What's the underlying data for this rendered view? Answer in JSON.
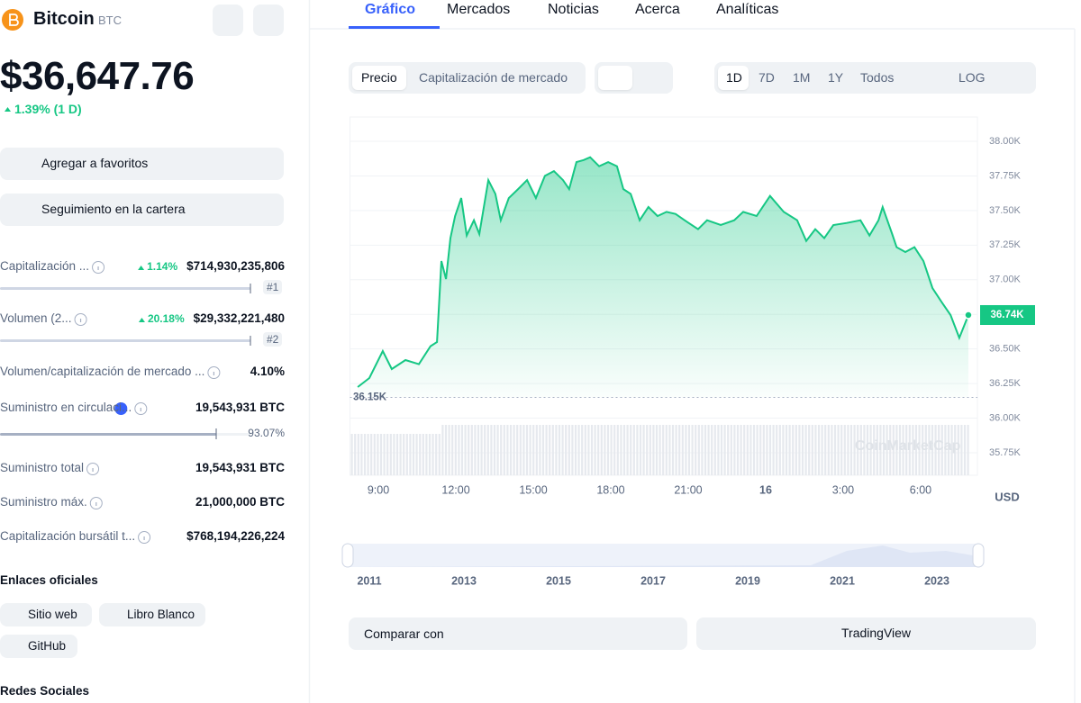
{
  "header": {
    "name": "Bitcoin",
    "symbol": "BTC",
    "price": "$36,647.76",
    "change": "1.39% (1 D)"
  },
  "buttons": {
    "favorites": "Agregar a favoritos",
    "portfolio": "Seguimiento en la cartera"
  },
  "stats": [
    {
      "label": "Capitalización ...",
      "change": "1.14%",
      "value": "$714,930,235,806",
      "rank": "#1"
    },
    {
      "label": "Volumen (2...",
      "change": "20.18%",
      "value": "$29,332,221,480",
      "rank": "#2"
    },
    {
      "label": "Volumen/capitalización de mercado ...",
      "value": "4.10%"
    },
    {
      "label": "Suministro en circulaci...",
      "value": "19,543,931 BTC",
      "percent": "93.07%"
    },
    {
      "label": "Suministro total",
      "value": "19,543,931 BTC"
    },
    {
      "label": "Suministro máx.",
      "value": "21,000,000 BTC"
    },
    {
      "label": "Capitalización bursátil t...",
      "value": "$768,194,226,224"
    }
  ],
  "links": {
    "title": "Enlaces oficiales",
    "items": [
      "Sitio web",
      "Libro Blanco",
      "GitHub"
    ]
  },
  "social_title": "Redes Sociales",
  "tabs": [
    "Gráfico",
    "Mercados",
    "Noticias",
    "Acerca",
    "Analíticas"
  ],
  "toolbar": {
    "types": [
      "Precio",
      "Capitalización de mercado"
    ],
    "ranges": [
      "1D",
      "7D",
      "1M",
      "1Y",
      "Todos"
    ],
    "log": "LOG"
  },
  "chart_data": {
    "type": "area",
    "color": "#16c784",
    "x": [
      8.2,
      8.65,
      9.17,
      9.52,
      10.05,
      10.57,
      11.02,
      11.27,
      11.44,
      11.62,
      11.79,
      11.97,
      12.21,
      12.42,
      12.7,
      12.91,
      13.26,
      13.53,
      13.74,
      14.05,
      14.41,
      14.76,
      15.1,
      15.45,
      15.8,
      16.15,
      16.39,
      16.67,
      16.95,
      17.2,
      17.55,
      17.9,
      18.24,
      18.49,
      18.77,
      19.12,
      19.46,
      19.81,
      20.16,
      20.51,
      20.86,
      21.38,
      21.73,
      22.26,
      22.78,
      23.13,
      23.65,
      24.17,
      24.7,
      25.22,
      25.57,
      25.92,
      26.27,
      26.62,
      27.14,
      27.67,
      28.02,
      28.37,
      28.53,
      28.9,
      29.07,
      29.41,
      29.76,
      30.11,
      30.46,
      30.81,
      31.16,
      31.5,
      31.85
    ],
    "values": [
      36225,
      36290,
      36485,
      36355,
      36420,
      36390,
      36520,
      36550,
      37135,
      37005,
      37300,
      37460,
      37590,
      37320,
      37430,
      37330,
      37720,
      37620,
      37430,
      37590,
      37655,
      37720,
      37590,
      37750,
      37785,
      37720,
      37655,
      37850,
      37865,
      37885,
      37820,
      37850,
      37820,
      37655,
      37620,
      37430,
      37525,
      37460,
      37490,
      37475,
      37430,
      37365,
      37430,
      37395,
      37430,
      37490,
      37460,
      37605,
      37490,
      37430,
      37280,
      37365,
      37300,
      37395,
      37410,
      37430,
      37320,
      37430,
      37525,
      37330,
      37235,
      37200,
      37235,
      37135,
      36940,
      36840,
      36745,
      36580,
      36745
    ],
    "xlim": [
      7.9,
      32.2
    ],
    "ylim": [
      35750,
      38000
    ],
    "xticks": [
      {
        "value": 9,
        "label": "9:00"
      },
      {
        "value": 12,
        "label": "12:00"
      },
      {
        "value": 15,
        "label": "15:00"
      },
      {
        "value": 18,
        "label": "18:00"
      },
      {
        "value": 21,
        "label": "21:00"
      },
      {
        "value": 24,
        "label": "16"
      },
      {
        "value": 27,
        "label": "3:00"
      },
      {
        "value": 30,
        "label": "6:00"
      }
    ],
    "yticks": [
      {
        "value": 35750,
        "label": "35.75K"
      },
      {
        "value": 36000,
        "label": "36.00K"
      },
      {
        "value": 36250,
        "label": "36.25K"
      },
      {
        "value": 36500,
        "label": "36.50K"
      },
      {
        "value": 36750,
        "label": "36.75K"
      },
      {
        "value": 37000,
        "label": "37.00K"
      },
      {
        "value": 37250,
        "label": "37.25K"
      },
      {
        "value": 37500,
        "label": "37.50K"
      },
      {
        "value": 37750,
        "label": "37.75K"
      },
      {
        "value": 38000,
        "label": "38.00K"
      }
    ],
    "grid": true,
    "low_line": {
      "value": 36150,
      "label": "36.15K"
    },
    "last_label": "36.74K",
    "y_unit": "USD",
    "watermark": "CoinMarketCap"
  },
  "navigator": {
    "years": [
      "2011",
      "2013",
      "2015",
      "2017",
      "2019",
      "2021",
      "2023"
    ]
  },
  "compare": "Comparar con",
  "tradingview": "TradingView"
}
